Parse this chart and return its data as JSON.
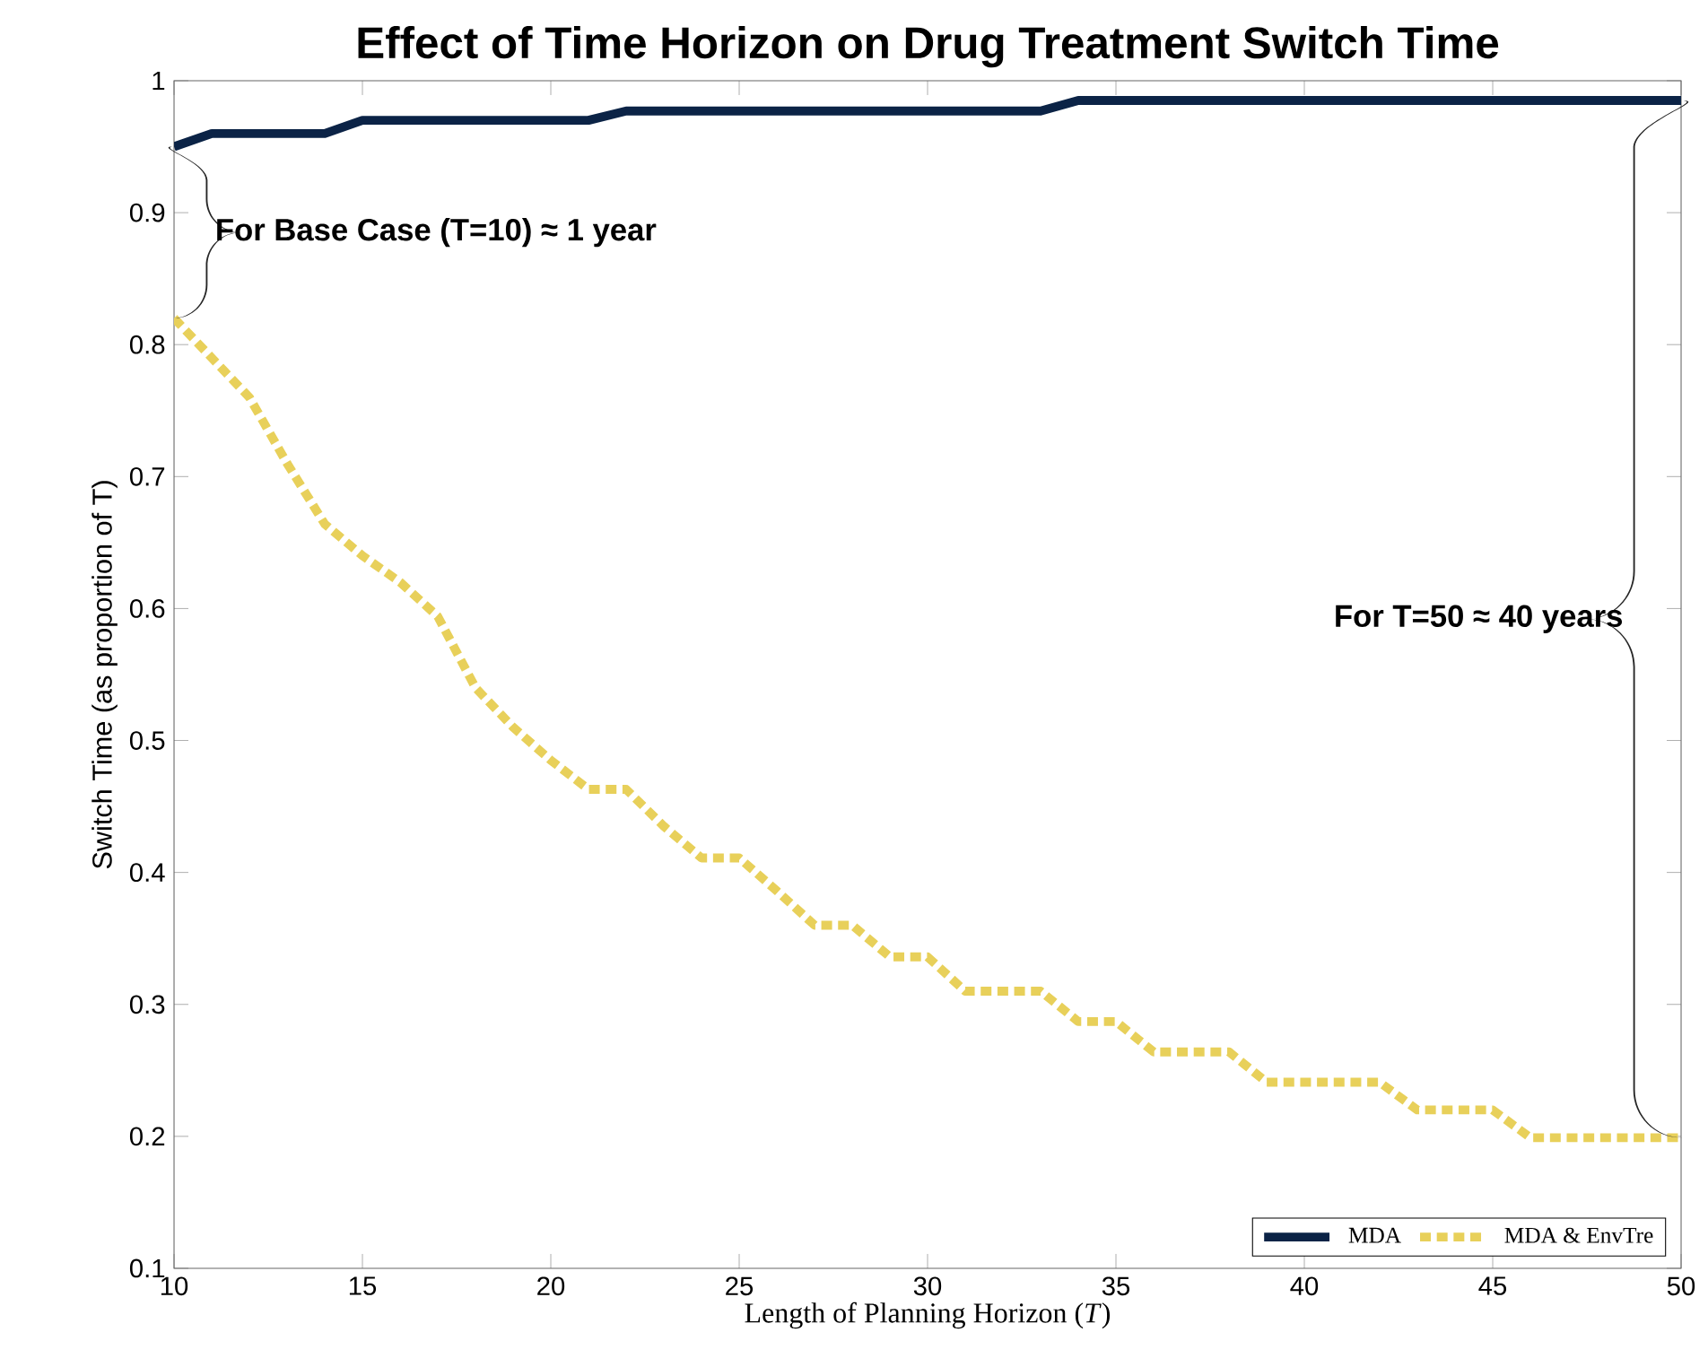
{
  "chart_data": {
    "type": "line",
    "title": "Effect of Time Horizon on Drug Treatment Switch Time",
    "xlabel": "Length of Planning Horizon (*T*)",
    "ylabel": "Switch Time (as proportion of T)",
    "x": [
      10,
      11,
      12,
      13,
      14,
      15,
      16,
      17,
      18,
      19,
      20,
      21,
      22,
      23,
      24,
      25,
      26,
      27,
      28,
      29,
      30,
      31,
      32,
      33,
      34,
      35,
      36,
      37,
      38,
      39,
      40,
      41,
      42,
      43,
      44,
      45,
      46,
      47,
      48,
      49,
      50
    ],
    "series": [
      {
        "name": "MDA",
        "color": "#0b2346",
        "line_style": "solid",
        "values": [
          0.95,
          0.96,
          0.96,
          0.96,
          0.96,
          0.97,
          0.97,
          0.97,
          0.97,
          0.97,
          0.97,
          0.97,
          0.977,
          0.977,
          0.977,
          0.977,
          0.977,
          0.977,
          0.977,
          0.977,
          0.977,
          0.977,
          0.977,
          0.977,
          0.985,
          0.985,
          0.985,
          0.985,
          0.985,
          0.985,
          0.985,
          0.985,
          0.985,
          0.985,
          0.985,
          0.985,
          0.985,
          0.985,
          0.985,
          0.985,
          0.985
        ]
      },
      {
        "name": "MDA & EnvTre",
        "color": "#e8d05a",
        "line_style": "dotted",
        "values": [
          0.82,
          0.79,
          0.76,
          0.71,
          0.664,
          0.64,
          0.62,
          0.594,
          0.54,
          0.51,
          0.485,
          0.463,
          0.463,
          0.435,
          0.411,
          0.411,
          0.386,
          0.36,
          0.36,
          0.336,
          0.336,
          0.31,
          0.31,
          0.31,
          0.287,
          0.287,
          0.264,
          0.264,
          0.264,
          0.241,
          0.241,
          0.241,
          0.241,
          0.22,
          0.22,
          0.22,
          0.199,
          0.199,
          0.199,
          0.199,
          0.199
        ]
      }
    ],
    "xlim": [
      10,
      50
    ],
    "ylim": [
      0.1,
      1
    ],
    "xticks": [
      10,
      15,
      20,
      25,
      30,
      35,
      40,
      45,
      50
    ],
    "yticks": [
      0.1,
      0.2,
      0.3,
      0.4,
      0.5,
      0.6,
      0.7,
      0.8,
      0.9,
      1
    ],
    "legend": "bottom right",
    "grid": false,
    "annotations": [
      "For Base Case (T=10) ≈ 1 year",
      "For T=50 ≈ 40 years"
    ]
  }
}
